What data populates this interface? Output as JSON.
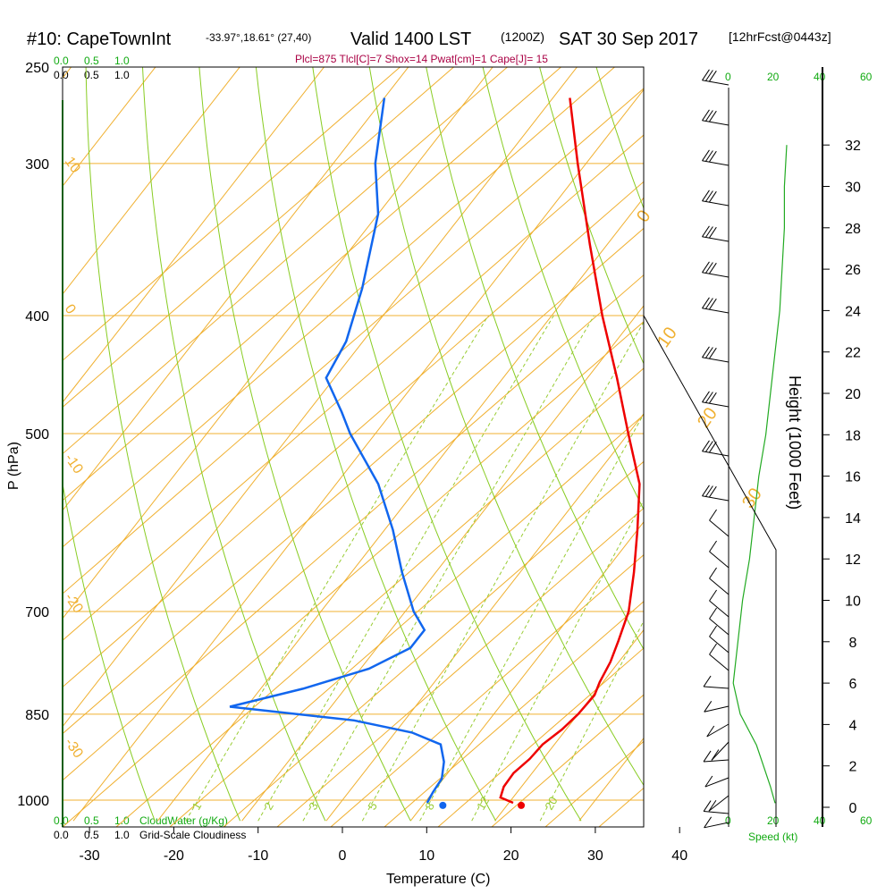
{
  "header": {
    "station": "#10: CapeTownInt",
    "coords": "-33.97°,18.61° (27,40)",
    "valid": "Valid 1400 LST",
    "zulu": "(1200Z)",
    "date": "SAT 30 Sep 2017",
    "fcst": "[12hrFcst@0443z]",
    "params": "Plcl=875 Tlcl[C]=7 Shox=14 Pwat[cm]=1 Cape[J]= 15"
  },
  "scales": {
    "cloudwater_ticks": [
      "0.0",
      "0.5",
      "1.0"
    ],
    "cloudiness_ticks": [
      "0.0",
      "0.5",
      "1.0"
    ],
    "cloudwater_label": "CloudWater (g/Kg)",
    "cloudiness_label": "Grid-Scale Cloudiness",
    "speed_ticks": [
      "0",
      "20",
      "40",
      "60"
    ],
    "speed_label": "Speed (kt)"
  },
  "colors": {
    "temperature": "#ee0000",
    "dewpoint": "#1166ee",
    "isotherm": "#f0b030",
    "dry_adiabat": "#88cc22",
    "mixing_ratio": "#99cc33",
    "wind_speed": "#22aa22",
    "params_text": "#aa0044"
  },
  "chart_data": {
    "type": "skew-t",
    "xlabel": "Temperature (C)",
    "ylabel": "P (hPa)",
    "y2label": "Height (1000 Feet)",
    "x_ticks": [
      -30,
      -20,
      -10,
      0,
      10,
      20,
      30,
      40
    ],
    "p_ticks": [
      250,
      300,
      400,
      500,
      700,
      850,
      1000
    ],
    "height_ticks": [
      0,
      2,
      4,
      6,
      8,
      10,
      12,
      14,
      16,
      18,
      20,
      22,
      24,
      26,
      28,
      30,
      32
    ],
    "xlim": [
      -35,
      46
    ],
    "plim": [
      250,
      1020
    ],
    "isotherm_labels": [
      {
        "t": 10,
        "label": "10"
      },
      {
        "t": 0,
        "label": "0"
      },
      {
        "t": -10,
        "label": "-10"
      },
      {
        "t": -20,
        "label": "-20"
      },
      {
        "t": -30,
        "label": "-30"
      },
      {
        "t": 0,
        "label": "0"
      },
      {
        "t": 10,
        "label": "10"
      },
      {
        "t": 20,
        "label": "20"
      },
      {
        "t": 30,
        "label": "30"
      }
    ],
    "mixing_ratio_labels": [
      "1",
      "2",
      "3",
      "5",
      "8",
      "12",
      "20"
    ],
    "series": [
      {
        "name": "Temperature",
        "points": [
          {
            "p": 1005,
            "t": 20.5
          },
          {
            "p": 995,
            "t": 18.5
          },
          {
            "p": 975,
            "t": 17.9
          },
          {
            "p": 950,
            "t": 17.8
          },
          {
            "p": 925,
            "t": 18.4
          },
          {
            "p": 900,
            "t": 18.6
          },
          {
            "p": 875,
            "t": 19.5
          },
          {
            "p": 850,
            "t": 20.0
          },
          {
            "p": 820,
            "t": 20.2
          },
          {
            "p": 800,
            "t": 19.6
          },
          {
            "p": 770,
            "t": 19.0
          },
          {
            "p": 740,
            "t": 18.0
          },
          {
            "p": 700,
            "t": 16.5
          },
          {
            "p": 650,
            "t": 13.5
          },
          {
            "p": 600,
            "t": 10.0
          },
          {
            "p": 550,
            "t": 6.0
          },
          {
            "p": 500,
            "t": 0.0
          },
          {
            "p": 450,
            "t": -6.5
          },
          {
            "p": 400,
            "t": -14.0
          },
          {
            "p": 350,
            "t": -22.0
          },
          {
            "p": 300,
            "t": -31.0
          },
          {
            "p": 265,
            "t": -38.0
          }
        ]
      },
      {
        "name": "Dewpoint",
        "points": [
          {
            "p": 1005,
            "t": 10.3
          },
          {
            "p": 985,
            "t": 10.0
          },
          {
            "p": 960,
            "t": 9.8
          },
          {
            "p": 930,
            "t": 8.5
          },
          {
            "p": 900,
            "t": 6.5
          },
          {
            "p": 880,
            "t": 2.0
          },
          {
            "p": 860,
            "t": -6.0
          },
          {
            "p": 838,
            "t": -22.0
          },
          {
            "p": 810,
            "t": -15.0
          },
          {
            "p": 780,
            "t": -9.0
          },
          {
            "p": 750,
            "t": -6.0
          },
          {
            "p": 725,
            "t": -6.0
          },
          {
            "p": 700,
            "t": -9.0
          },
          {
            "p": 650,
            "t": -14.0
          },
          {
            "p": 600,
            "t": -19.0
          },
          {
            "p": 550,
            "t": -25.0
          },
          {
            "p": 500,
            "t": -33.0
          },
          {
            "p": 480,
            "t": -36.0
          },
          {
            "p": 450,
            "t": -41.0
          },
          {
            "p": 420,
            "t": -42.0
          },
          {
            "p": 380,
            "t": -45.0
          },
          {
            "p": 330,
            "t": -50.0
          },
          {
            "p": 300,
            "t": -55.0
          },
          {
            "p": 265,
            "t": -60.0
          }
        ]
      }
    ],
    "surface_markers": {
      "temperature": 21.7,
      "dewpoint": 12.4
    },
    "wind_speed_profile": [
      {
        "h": 0.2,
        "v": 20
      },
      {
        "h": 1.0,
        "v": 18
      },
      {
        "h": 2.0,
        "v": 15
      },
      {
        "h": 3.0,
        "v": 12
      },
      {
        "h": 4.5,
        "v": 5
      },
      {
        "h": 6.0,
        "v": 2
      },
      {
        "h": 8.0,
        "v": 4
      },
      {
        "h": 10.0,
        "v": 6
      },
      {
        "h": 12.0,
        "v": 9
      },
      {
        "h": 14.0,
        "v": 11
      },
      {
        "h": 16.0,
        "v": 13
      },
      {
        "h": 18.0,
        "v": 16
      },
      {
        "h": 20.0,
        "v": 18
      },
      {
        "h": 22.0,
        "v": 20
      },
      {
        "h": 24.0,
        "v": 22
      },
      {
        "h": 26.0,
        "v": 23
      },
      {
        "h": 28.0,
        "v": 24
      },
      {
        "h": 30.0,
        "v": 24
      },
      {
        "h": 32.0,
        "v": 25
      }
    ]
  }
}
